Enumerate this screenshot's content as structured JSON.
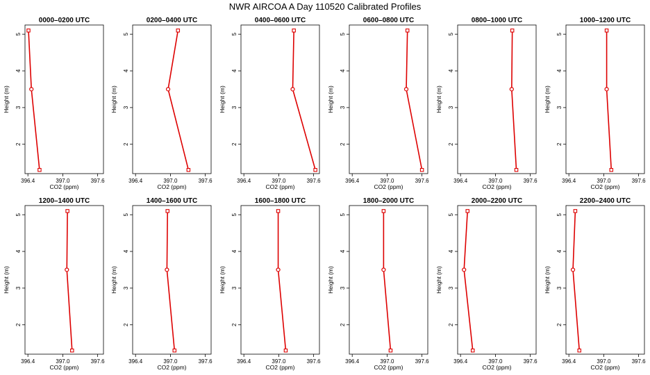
{
  "figure_title": "NWR AIRCOA A  Day 110520  Calibrated Profiles",
  "colors": {
    "line": "#dd0000",
    "axis": "#000000"
  },
  "chart_data": [
    {
      "type": "line",
      "title": "0000–0200 UTC",
      "xlabel": "CO2 (ppm)",
      "ylabel": "Height (m)",
      "xlim": [
        396.35,
        397.7
      ],
      "ylim": [
        1.2,
        5.25
      ],
      "xticks": [
        396.4,
        397.0,
        397.6
      ],
      "yticks": [
        2,
        3,
        4,
        5
      ],
      "series": [
        {
          "x": [
            396.41,
            396.46,
            396.6
          ],
          "y": [
            5.1,
            3.5,
            1.3
          ]
        }
      ]
    },
    {
      "type": "line",
      "title": "0200–0400 UTC",
      "xlabel": "CO2 (ppm)",
      "ylabel": "Height (m)",
      "xlim": [
        396.35,
        397.7
      ],
      "ylim": [
        1.2,
        5.25
      ],
      "xticks": [
        396.4,
        397.0,
        397.6
      ],
      "yticks": [
        2,
        3,
        4,
        5
      ],
      "series": [
        {
          "x": [
            397.13,
            396.96,
            397.31
          ],
          "y": [
            5.1,
            3.5,
            1.3
          ]
        }
      ]
    },
    {
      "type": "line",
      "title": "0400–0600 UTC",
      "xlabel": "CO2 (ppm)",
      "ylabel": "Height (m)",
      "xlim": [
        396.35,
        397.7
      ],
      "ylim": [
        1.2,
        5.25
      ],
      "xticks": [
        396.4,
        397.0,
        397.6
      ],
      "yticks": [
        2,
        3,
        4,
        5
      ],
      "series": [
        {
          "x": [
            397.26,
            397.24,
            397.63
          ],
          "y": [
            5.1,
            3.5,
            1.3
          ]
        }
      ]
    },
    {
      "type": "line",
      "title": "0600–0800 UTC",
      "xlabel": "CO2 (ppm)",
      "ylabel": "Height (m)",
      "xlim": [
        396.35,
        397.7
      ],
      "ylim": [
        1.2,
        5.25
      ],
      "xticks": [
        396.4,
        397.0,
        397.6
      ],
      "yticks": [
        2,
        3,
        4,
        5
      ],
      "series": [
        {
          "x": [
            397.35,
            397.33,
            397.6
          ],
          "y": [
            5.1,
            3.5,
            1.3
          ]
        }
      ]
    },
    {
      "type": "line",
      "title": "0800–1000 UTC",
      "xlabel": "CO2 (ppm)",
      "ylabel": "Height (m)",
      "xlim": [
        396.35,
        397.7
      ],
      "ylim": [
        1.2,
        5.25
      ],
      "xticks": [
        396.4,
        397.0,
        397.6
      ],
      "yticks": [
        2,
        3,
        4,
        5
      ],
      "series": [
        {
          "x": [
            397.29,
            397.28,
            397.36
          ],
          "y": [
            5.1,
            3.5,
            1.3
          ]
        }
      ]
    },
    {
      "type": "line",
      "title": "1000–1200 UTC",
      "xlabel": "CO2 (ppm)",
      "ylabel": "Height (m)",
      "xlim": [
        396.35,
        397.7
      ],
      "ylim": [
        1.2,
        5.25
      ],
      "xticks": [
        396.4,
        397.0,
        397.6
      ],
      "yticks": [
        2,
        3,
        4,
        5
      ],
      "series": [
        {
          "x": [
            397.05,
            397.05,
            397.13
          ],
          "y": [
            5.1,
            3.5,
            1.3
          ]
        }
      ]
    },
    {
      "type": "line",
      "title": "1200–1400 UTC",
      "xlabel": "CO2 (ppm)",
      "ylabel": "Height (m)",
      "xlim": [
        396.35,
        397.7
      ],
      "ylim": [
        1.2,
        5.25
      ],
      "xticks": [
        396.4,
        397.0,
        397.6
      ],
      "yticks": [
        2,
        3,
        4,
        5
      ],
      "series": [
        {
          "x": [
            397.08,
            397.07,
            397.16
          ],
          "y": [
            5.1,
            3.5,
            1.3
          ]
        }
      ]
    },
    {
      "type": "line",
      "title": "1400–1600 UTC",
      "xlabel": "CO2 (ppm)",
      "ylabel": "Height (m)",
      "xlim": [
        396.35,
        397.7
      ],
      "ylim": [
        1.2,
        5.25
      ],
      "xticks": [
        396.4,
        397.0,
        397.6
      ],
      "yticks": [
        2,
        3,
        4,
        5
      ],
      "series": [
        {
          "x": [
            396.95,
            396.94,
            397.07
          ],
          "y": [
            5.1,
            3.5,
            1.3
          ]
        }
      ]
    },
    {
      "type": "line",
      "title": "1600–1800 UTC",
      "xlabel": "CO2 (ppm)",
      "ylabel": "Height (m)",
      "xlim": [
        396.35,
        397.7
      ],
      "ylim": [
        1.2,
        5.25
      ],
      "xticks": [
        396.4,
        397.0,
        397.6
      ],
      "yticks": [
        2,
        3,
        4,
        5
      ],
      "series": [
        {
          "x": [
            396.99,
            396.99,
            397.12
          ],
          "y": [
            5.1,
            3.5,
            1.3
          ]
        }
      ]
    },
    {
      "type": "line",
      "title": "1800–2000 UTC",
      "xlabel": "CO2 (ppm)",
      "ylabel": "Height (m)",
      "xlim": [
        396.35,
        397.7
      ],
      "ylim": [
        1.2,
        5.25
      ],
      "xticks": [
        396.4,
        397.0,
        397.6
      ],
      "yticks": [
        2,
        3,
        4,
        5
      ],
      "series": [
        {
          "x": [
            396.94,
            396.94,
            397.06
          ],
          "y": [
            5.1,
            3.5,
            1.3
          ]
        }
      ]
    },
    {
      "type": "line",
      "title": "2000–2200 UTC",
      "xlabel": "CO2 (ppm)",
      "ylabel": "Height (m)",
      "xlim": [
        396.35,
        397.7
      ],
      "ylim": [
        1.2,
        5.25
      ],
      "xticks": [
        396.4,
        397.0,
        397.6
      ],
      "yticks": [
        2,
        3,
        4,
        5
      ],
      "series": [
        {
          "x": [
            396.52,
            396.46,
            396.61
          ],
          "y": [
            5.1,
            3.5,
            1.3
          ]
        }
      ]
    },
    {
      "type": "line",
      "title": "2200–2400 UTC",
      "xlabel": "CO2 (ppm)",
      "ylabel": "Height (m)",
      "xlim": [
        396.35,
        397.7
      ],
      "ylim": [
        1.2,
        5.25
      ],
      "xticks": [
        396.4,
        397.0,
        397.6
      ],
      "yticks": [
        2,
        3,
        4,
        5
      ],
      "series": [
        {
          "x": [
            396.51,
            396.47,
            396.58
          ],
          "y": [
            5.1,
            3.5,
            1.3
          ]
        }
      ]
    }
  ]
}
